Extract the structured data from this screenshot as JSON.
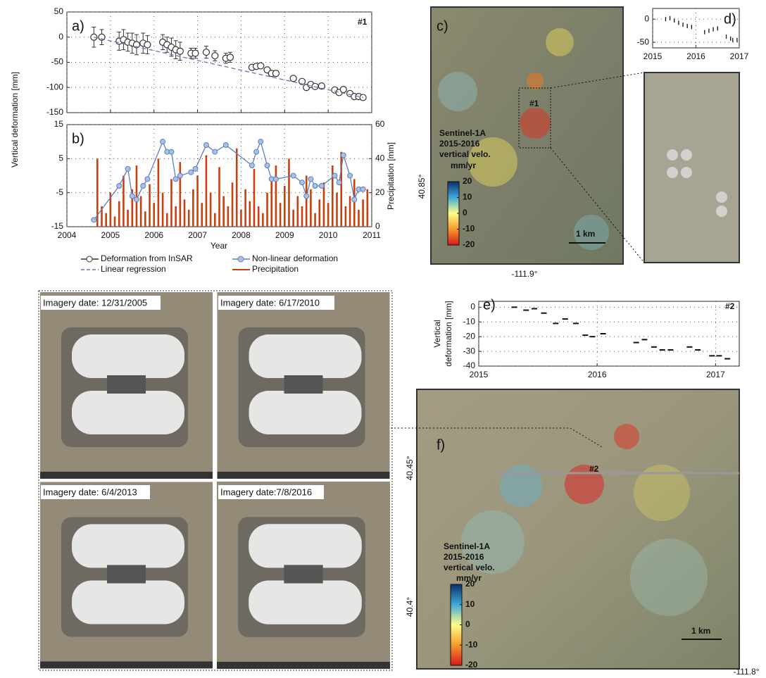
{
  "chart_data": [
    {
      "type": "errorbar",
      "panel_label": "a)",
      "annotation": "#1",
      "ylabel": "Vertical deformation [mm]",
      "ylim": [
        -150,
        50
      ],
      "yticks": [
        -150,
        -100,
        -50,
        0,
        50
      ],
      "grid": true,
      "series": [
        {
          "name": "Deformation from InSAR",
          "color": "#333333",
          "marker": "o",
          "x": [
            2004.62,
            2004.8,
            2005.2,
            2005.3,
            2005.4,
            2005.5,
            2005.6,
            2005.75,
            2005.85,
            2006.2,
            2006.3,
            2006.4,
            2006.5,
            2006.6,
            2006.85,
            2006.95,
            2007.2,
            2007.4,
            2007.65,
            2007.75,
            2008.25,
            2008.35,
            2008.45,
            2008.6,
            2008.7,
            2008.8,
            2009.2,
            2009.4,
            2009.5,
            2009.6,
            2009.7,
            2009.85,
            2010.15,
            2010.25,
            2010.35,
            2010.5,
            2010.6,
            2010.7,
            2010.8
          ],
          "values": [
            0,
            0,
            -8,
            -5,
            -10,
            -12,
            -15,
            -12,
            -15,
            -10,
            -15,
            -20,
            -25,
            -28,
            -32,
            -32,
            -30,
            -37,
            -42,
            -40,
            -60,
            -58,
            -57,
            -65,
            -72,
            -72,
            -82,
            -88,
            -100,
            -94,
            -98,
            -97,
            -105,
            -110,
            -104,
            -112,
            -118,
            -118,
            -120
          ],
          "errors": [
            20,
            15,
            18,
            20,
            18,
            20,
            20,
            20,
            18,
            15,
            15,
            18,
            18,
            18,
            10,
            10,
            12,
            10,
            10,
            10,
            5,
            5,
            5,
            3,
            3,
            3,
            3,
            3,
            3,
            3,
            3,
            3,
            3,
            5,
            5,
            3,
            3,
            3,
            3
          ]
        },
        {
          "name": "Linear regression",
          "color": "#6677aa",
          "linestyle": "dashed",
          "x": [
            2004.62,
            2010.8
          ],
          "values": [
            0,
            -120
          ]
        }
      ]
    },
    {
      "type": "line_bar",
      "panel_label": "b)",
      "xlabel": "Year",
      "y2label": "Precipitation [mm]",
      "xlim": [
        2004,
        2011
      ],
      "xticks": [
        2004,
        2005,
        2006,
        2007,
        2008,
        2009,
        2010,
        2011
      ],
      "ylim": [
        -15,
        15
      ],
      "yticks": [
        -15,
        -5,
        5,
        15
      ],
      "ycolor": "#3d64a8",
      "y2lim": [
        0,
        60
      ],
      "y2ticks": [
        0,
        20,
        40,
        60
      ],
      "y2color": "#c8400e",
      "grid": true,
      "series": [
        {
          "name": "Non-linear deformation",
          "color": "#5b7fbf",
          "marker": "o",
          "x": [
            2004.62,
            2005.2,
            2005.4,
            2005.5,
            2005.6,
            2005.75,
            2005.85,
            2006.2,
            2006.3,
            2006.4,
            2006.5,
            2006.6,
            2006.85,
            2006.95,
            2007.2,
            2007.4,
            2007.65,
            2008.25,
            2008.35,
            2008.45,
            2008.6,
            2008.7,
            2008.8,
            2009.2,
            2009.4,
            2009.5,
            2009.6,
            2009.7,
            2009.85,
            2010.15,
            2010.25,
            2010.35,
            2010.5,
            2010.6,
            2010.7,
            2010.8
          ],
          "values": [
            -13,
            -3,
            2,
            -6,
            -7,
            -3,
            -1,
            10,
            7,
            7,
            -1,
            0,
            1,
            2,
            9,
            7,
            9,
            3,
            7,
            10,
            3,
            -1,
            -1,
            0,
            -2,
            -6,
            -1,
            -3,
            -3,
            0,
            -2,
            6,
            0,
            -7,
            -4,
            -4
          ]
        },
        {
          "name": "Precipitation",
          "color": "#c8400e",
          "axis": "y2",
          "x": [
            2004.7,
            2004.8,
            2004.9,
            2005,
            2005.1,
            2005.2,
            2005.3,
            2005.4,
            2005.5,
            2005.6,
            2005.7,
            2005.8,
            2005.9,
            2006,
            2006.1,
            2006.2,
            2006.3,
            2006.4,
            2006.5,
            2006.6,
            2006.7,
            2006.8,
            2006.9,
            2007,
            2007.1,
            2007.2,
            2007.3,
            2007.4,
            2007.5,
            2007.6,
            2007.7,
            2007.8,
            2007.9,
            2008,
            2008.1,
            2008.2,
            2008.3,
            2008.4,
            2008.5,
            2008.6,
            2008.7,
            2008.8,
            2008.9,
            2009,
            2009.1,
            2009.2,
            2009.3,
            2009.4,
            2009.5,
            2009.6,
            2009.7,
            2009.8,
            2009.9,
            2010,
            2010.1,
            2010.2,
            2010.3,
            2010.4,
            2010.5,
            2010.6,
            2010.7,
            2010.8,
            2010.9
          ],
          "values": [
            40,
            12,
            8,
            20,
            6,
            15,
            30,
            10,
            22,
            36,
            18,
            9,
            25,
            14,
            40,
            20,
            8,
            28,
            12,
            38,
            16,
            10,
            22,
            30,
            14,
            42,
            20,
            8,
            35,
            18,
            12,
            26,
            46,
            10,
            22,
            15,
            34,
            12,
            8,
            20,
            28,
            36,
            14,
            24,
            40,
            10,
            18,
            12,
            30,
            22,
            8,
            16,
            26,
            14,
            36,
            20,
            44,
            12,
            18,
            28,
            10,
            16,
            22
          ]
        }
      ]
    },
    {
      "type": "errorbar",
      "panel_label": "d)",
      "xlim": [
        2015,
        2017
      ],
      "xticks": [
        2015,
        2016,
        2017
      ],
      "ylim": [
        -62,
        23
      ],
      "yticks": [
        0,
        -50
      ],
      "grid": true,
      "series": [
        {
          "color": "#111111",
          "marker": "|",
          "x": [
            2015.3,
            2015.4,
            2015.5,
            2015.6,
            2015.7,
            2015.8,
            2015.9,
            2016.2,
            2016.3,
            2016.4,
            2016.5,
            2016.7,
            2016.8,
            2016.85,
            2016.95
          ],
          "values": [
            0,
            2,
            -3,
            -8,
            -12,
            -15,
            -17,
            -28,
            -25,
            -22,
            -20,
            -38,
            -42,
            -45,
            -45
          ]
        }
      ]
    },
    {
      "type": "errorbar",
      "panel_label": "e)",
      "annotation": "#2",
      "ylabel": [
        "Vertical",
        "deformation [mm]"
      ],
      "xlim": [
        2015,
        2017.2
      ],
      "xticks": [
        2015,
        2016,
        2017
      ],
      "ylim": [
        -40,
        4
      ],
      "yticks": [
        0,
        -10,
        -20,
        -30,
        -40
      ],
      "grid": true,
      "series": [
        {
          "color": "#111111",
          "marker": "_",
          "x": [
            2015.3,
            2015.4,
            2015.47,
            2015.55,
            2015.65,
            2015.73,
            2015.82,
            2015.9,
            2015.96,
            2016.05,
            2016.33,
            2016.4,
            2016.48,
            2016.55,
            2016.62,
            2016.78,
            2016.85,
            2016.97,
            2017.03,
            2017.1
          ],
          "values": [
            0,
            -2,
            -1,
            -4,
            -11,
            -8,
            -11,
            -19,
            -20,
            -18,
            -24,
            -22,
            -27,
            -29,
            -29,
            -27,
            -29,
            -33,
            -33,
            -35
          ]
        }
      ]
    }
  ],
  "maps": [
    {
      "panel_label": "c)",
      "annotation": "#1",
      "scale": "1 km",
      "lat_labels": [
        "40.85°"
      ],
      "lon_label": "-111.9°",
      "colorbar": {
        "title": [
          "Sentinel-1A",
          "2015-2016",
          "vertical velo.",
          "mm/yr"
        ],
        "lim": [
          -20,
          20
        ],
        "ticks": [
          20,
          10,
          0,
          -10,
          -20
        ]
      }
    },
    {
      "panel_label": "f)",
      "annotation": "#2",
      "scale": "1 km",
      "lat_labels": [
        "40.45°",
        "40.4°"
      ],
      "lon_label": "-111.8°",
      "colorbar": {
        "title": [
          "Sentinel-1A",
          "2015-2016",
          "vertical velo.",
          "mm/yr"
        ],
        "lim": [
          -20,
          20
        ],
        "ticks": [
          20,
          10,
          0,
          -10,
          -20
        ]
      }
    }
  ],
  "imagery": [
    "Imagery date: 12/31/2005",
    "Imagery date: 6/17/2010",
    "Imagery date: 6/4/2013",
    "Imagery date:7/8/2016"
  ]
}
